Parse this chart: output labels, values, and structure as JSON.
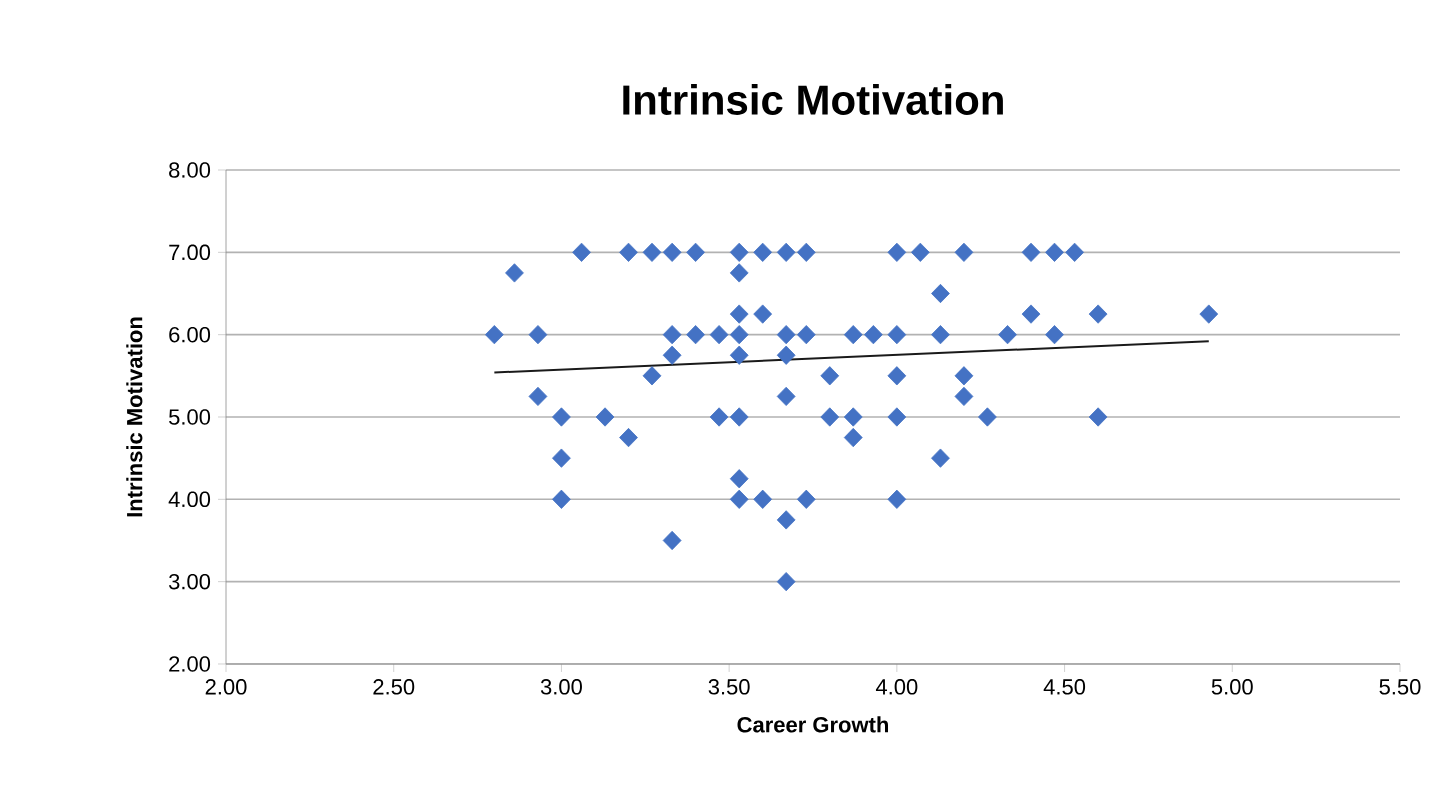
{
  "chart_data": {
    "type": "scatter",
    "title": "Intrinsic Motivation",
    "xlabel": "Career Growth",
    "ylabel": "Intrinsic Motivation",
    "xlim": [
      2,
      5.5
    ],
    "ylim": [
      2,
      8
    ],
    "xticks": [
      {
        "value": 2,
        "label": "2.00"
      },
      {
        "value": 2.5,
        "label": "2.50"
      },
      {
        "value": 3,
        "label": "3.00"
      },
      {
        "value": 3.5,
        "label": "3.50"
      },
      {
        "value": 4,
        "label": "4.00"
      },
      {
        "value": 4.5,
        "label": "4.50"
      },
      {
        "value": 5,
        "label": "5.00"
      },
      {
        "value": 5.5,
        "label": "5.50"
      }
    ],
    "yticks": [
      {
        "value": 2,
        "label": "2.00"
      },
      {
        "value": 3,
        "label": "3.00"
      },
      {
        "value": 4,
        "label": "4.00"
      },
      {
        "value": 5,
        "label": "5.00"
      },
      {
        "value": 6,
        "label": "6.00"
      },
      {
        "value": 7,
        "label": "7.00"
      },
      {
        "value": 8,
        "label": "8.00"
      }
    ],
    "grid": "y",
    "series": [
      {
        "color": "#4472c4",
        "marker": "diamond",
        "x": [
          3.06,
          3.2,
          3.27,
          3.33,
          3.4,
          3.53,
          3.6,
          3.67,
          3.73,
          4.0,
          4.07,
          4.2,
          4.4,
          4.47,
          4.53,
          2.86,
          3.53,
          4.13,
          3.53,
          3.6,
          4.4,
          4.6,
          4.93,
          2.8,
          2.93,
          3.33,
          3.4,
          3.47,
          3.53,
          3.67,
          3.73,
          3.87,
          3.93,
          4.0,
          4.13,
          4.33,
          4.47,
          3.33,
          3.53,
          3.67,
          3.27,
          3.8,
          4.0,
          4.2,
          2.93,
          3.67,
          4.2,
          3.0,
          3.13,
          3.47,
          3.53,
          3.8,
          3.87,
          4.0,
          4.27,
          4.6,
          3.2,
          3.87,
          3.0,
          4.13,
          3.53,
          3.0,
          3.53,
          3.6,
          3.73,
          4.0,
          3.67,
          3.33,
          3.67
        ],
        "values": [
          7,
          7,
          7,
          7,
          7,
          7,
          7,
          7,
          7,
          7,
          7,
          7,
          7,
          7,
          7,
          6.75,
          6.75,
          6.5,
          6.25,
          6.25,
          6.25,
          6.25,
          6.25,
          6,
          6,
          6,
          6,
          6,
          6,
          6,
          6,
          6,
          6,
          6,
          6,
          6,
          6,
          5.75,
          5.75,
          5.75,
          5.5,
          5.5,
          5.5,
          5.5,
          5.25,
          5.25,
          5.25,
          5,
          5,
          5,
          5,
          5,
          5,
          5,
          5,
          5,
          4.75,
          4.75,
          4.5,
          4.5,
          4.25,
          4,
          4,
          4,
          4,
          4,
          3.75,
          3.5,
          3
        ]
      },
      {
        "type": "line",
        "color": "#1a1a1a",
        "marker": "none",
        "x": [
          2.8,
          4.93
        ],
        "values": [
          5.54,
          5.92
        ]
      }
    ]
  }
}
